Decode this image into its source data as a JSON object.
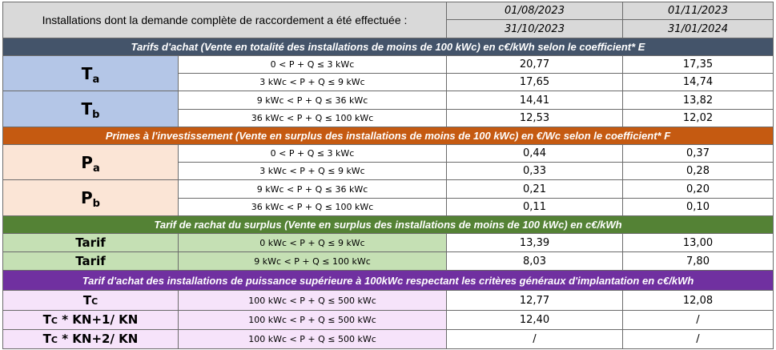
{
  "header": {
    "title": "Installations dont la demande complète de raccordement a été effectuée :",
    "periods": [
      {
        "start": "01/08/2023",
        "end": "31/10/2023"
      },
      {
        "start": "01/11/2023",
        "end": "31/01/2024"
      }
    ],
    "color": "#d9d9d9"
  },
  "sections": [
    {
      "title": "Tarifs d'achat (Vente en totalité des installations de moins de 100 kWc) en c€/kWh selon le coefficient* E",
      "color": "#44546a",
      "fill": "#b4c6e7",
      "groups": [
        {
          "letter": "T",
          "sub": "a",
          "rows": [
            {
              "range": "0 < P + Q ≤ 3 kWc",
              "values": [
                "20,77",
                "17,35"
              ]
            },
            {
              "range": "3  kWc < P + Q ≤ 9 kWc",
              "values": [
                "17,65",
                "14,74"
              ]
            }
          ]
        },
        {
          "letter": "T",
          "sub": "b",
          "rows": [
            {
              "range": "9 kWc < P + Q ≤ 36 kWc",
              "values": [
                "14,41",
                "13,82"
              ]
            },
            {
              "range": "36 kWc < P + Q ≤ 100 kWc",
              "values": [
                "12,53",
                "12,02"
              ]
            }
          ]
        }
      ]
    },
    {
      "title": "Primes à l'investissement (Vente en surplus des installations de moins de 100 kWc) en €/Wc  selon le coefficient* F",
      "color": "#c55a11",
      "fill": "#fbe5d6",
      "groups": [
        {
          "letter": "P",
          "sub": "a",
          "rows": [
            {
              "range": "0 < P + Q ≤ 3 kWc",
              "values": [
                "0,44",
                "0,37"
              ]
            },
            {
              "range": "3  kWc < P + Q ≤ 9 kWc",
              "values": [
                "0,33",
                "0,28"
              ]
            }
          ]
        },
        {
          "letter": "P",
          "sub": "b",
          "rows": [
            {
              "range": "9 kWc < P + Q ≤ 36 kWc",
              "values": [
                "0,21",
                "0,20"
              ]
            },
            {
              "range": "36 kWc < P + Q ≤ 100 kWc",
              "values": [
                "0,11",
                "0,10"
              ]
            }
          ]
        }
      ]
    },
    {
      "title": "Tarif de rachat du surplus (Vente en surplus des installations de moins de 100 kWc) en c€/kWh",
      "color": "#548235",
      "fill": "#c5e0b4",
      "rows": [
        {
          "label": "Tarif",
          "range": "0 kWc < P + Q ≤ 9 kWc",
          "values": [
            "13,39",
            "13,00"
          ]
        },
        {
          "label": "Tarif",
          "range": "9 kWc < P + Q ≤ 100 kWc",
          "values": [
            "8,03",
            "7,80"
          ]
        }
      ]
    },
    {
      "title": "Tarif d'achat des installations de puissance supérieure à 100kWc respectant les critères généraux d'implantation en c€/kWh",
      "color": "#7030a0",
      "fill": "#f6e3fa",
      "rows": [
        {
          "label": "Tc",
          "range": "100 kWc < P + Q ≤ 500 kWc",
          "values": [
            "12,77",
            "12,08"
          ]
        },
        {
          "label": "Tc * KN+1/ KN",
          "range": "100 kWc < P + Q ≤ 500 kWc",
          "values": [
            "12,40",
            "/"
          ]
        },
        {
          "label": "Tc * KN+2/ KN",
          "range": "100 kWc < P + Q ≤ 500 kWc",
          "values": [
            "/",
            "/"
          ]
        }
      ]
    }
  ]
}
